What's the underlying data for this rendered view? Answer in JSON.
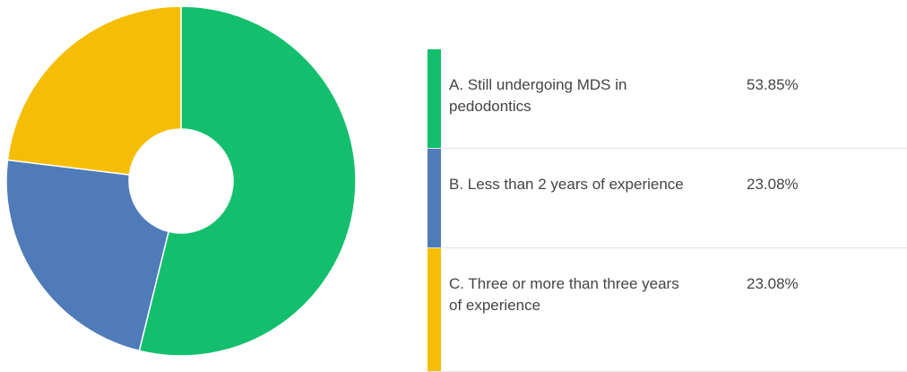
{
  "chart_data": {
    "type": "donut",
    "categories": [
      "A. Still undergoing MDS in pedodontics",
      "B. Less than 2 years of experience",
      "C. Three or more than three years of experience"
    ],
    "values": [
      53.85,
      23.08,
      23.08
    ],
    "value_labels": [
      "53.85%",
      "23.08%",
      "23.08%"
    ],
    "colors": [
      "#13bf6c",
      "#4f7bb8",
      "#f6bd05"
    ]
  }
}
